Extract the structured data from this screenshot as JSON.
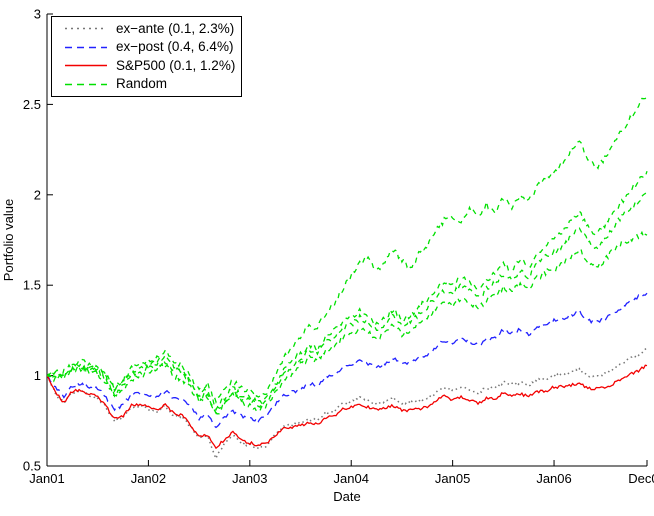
{
  "window": {
    "background": "#ffffff",
    "axis_color": "#000000"
  },
  "chart_data": {
    "type": "line",
    "title": "",
    "xlabel": "Date",
    "ylabel": "Portfolio value",
    "x_tick_labels": [
      "Jan01",
      "Jan02",
      "Jan03",
      "Jan04",
      "Jan05",
      "Jan06",
      "Dec06"
    ],
    "x_tick_positions_months": [
      0,
      12,
      24,
      36,
      48,
      60,
      71
    ],
    "x_range_months": [
      0,
      71
    ],
    "y_ticks": [
      0.5,
      1,
      1.5,
      2,
      2.5,
      3
    ],
    "ylim": [
      0.5,
      3
    ],
    "grid": false,
    "legend": {
      "position": "top-left",
      "border_color": "#000000",
      "background": "#ffffff"
    },
    "sampling": "monthly estimates, Jan 2001 - Dec 2006",
    "series": [
      {
        "name": "ex−ante (0.1, 2.3%)",
        "color": "#777777",
        "style": "dotted",
        "in_legend": true,
        "daily_noise": 0.008,
        "values": [
          1.0,
          0.9,
          0.845,
          0.905,
          0.915,
          0.89,
          0.88,
          0.822,
          0.752,
          0.768,
          0.826,
          0.83,
          0.818,
          0.8,
          0.83,
          0.778,
          0.772,
          0.712,
          0.655,
          0.66,
          0.545,
          0.63,
          0.668,
          0.628,
          0.615,
          0.6,
          0.612,
          0.67,
          0.715,
          0.73,
          0.745,
          0.76,
          0.752,
          0.795,
          0.802,
          0.845,
          0.86,
          0.875,
          0.862,
          0.845,
          0.86,
          0.878,
          0.85,
          0.852,
          0.862,
          0.875,
          0.905,
          0.935,
          0.915,
          0.935,
          0.922,
          0.905,
          0.932,
          0.932,
          0.962,
          0.952,
          0.962,
          0.945,
          0.975,
          0.978,
          1.0,
          1.005,
          1.018,
          1.032,
          1.002,
          0.998,
          1.008,
          1.035,
          1.062,
          1.095,
          1.118,
          1.148
        ]
      },
      {
        "name": "ex−post (0.4, 6.4%)",
        "color": "#2222ff",
        "style": "dashed",
        "in_legend": true,
        "daily_noise": 0.01,
        "values": [
          1.0,
          0.93,
          0.885,
          0.945,
          0.955,
          0.935,
          0.928,
          0.878,
          0.815,
          0.838,
          0.895,
          0.905,
          0.895,
          0.885,
          0.915,
          0.875,
          0.872,
          0.825,
          0.765,
          0.782,
          0.715,
          0.765,
          0.805,
          0.775,
          0.765,
          0.755,
          0.775,
          0.838,
          0.888,
          0.908,
          0.928,
          0.955,
          0.945,
          0.995,
          1.005,
          1.048,
          1.065,
          1.085,
          1.068,
          1.045,
          1.068,
          1.095,
          1.062,
          1.072,
          1.095,
          1.115,
          1.155,
          1.195,
          1.175,
          1.205,
          1.192,
          1.165,
          1.205,
          1.205,
          1.255,
          1.235,
          1.255,
          1.225,
          1.275,
          1.275,
          1.305,
          1.315,
          1.335,
          1.355,
          1.305,
          1.298,
          1.308,
          1.345,
          1.378,
          1.415,
          1.435,
          1.455
        ]
      },
      {
        "name": "S&P500  (0.1, 1.2%)",
        "color": "#f30000",
        "style": "solid",
        "in_legend": true,
        "daily_noise": 0.008,
        "values": [
          1.0,
          0.908,
          0.849,
          0.914,
          0.92,
          0.896,
          0.887,
          0.83,
          0.762,
          0.776,
          0.834,
          0.84,
          0.827,
          0.81,
          0.84,
          0.788,
          0.781,
          0.725,
          0.668,
          0.671,
          0.597,
          0.649,
          0.685,
          0.644,
          0.627,
          0.616,
          0.621,
          0.671,
          0.706,
          0.714,
          0.725,
          0.738,
          0.729,
          0.769,
          0.774,
          0.814,
          0.828,
          0.838,
          0.824,
          0.81,
          0.821,
          0.835,
          0.807,
          0.808,
          0.816,
          0.827,
          0.859,
          0.887,
          0.865,
          0.881,
          0.865,
          0.847,
          0.873,
          0.872,
          0.903,
          0.893,
          0.9,
          0.884,
          0.914,
          0.914,
          0.937,
          0.938,
          0.948,
          0.96,
          0.93,
          0.93,
          0.935,
          0.955,
          0.978,
          1.009,
          1.026,
          1.06
        ]
      },
      {
        "name": "Random",
        "color": "#00e000",
        "style": "dashed",
        "in_legend": true,
        "daily_noise": 0.016,
        "values": [
          1.0,
          1.02,
          0.99,
          1.05,
          1.08,
          1.06,
          1.04,
          1.0,
          0.93,
          0.97,
          1.04,
          1.06,
          1.08,
          1.1,
          1.14,
          1.08,
          1.06,
          1.0,
          0.92,
          0.95,
          0.85,
          0.92,
          0.97,
          0.93,
          0.92,
          0.88,
          0.91,
          1.0,
          1.1,
          1.15,
          1.22,
          1.28,
          1.26,
          1.35,
          1.4,
          1.48,
          1.55,
          1.62,
          1.66,
          1.58,
          1.63,
          1.7,
          1.64,
          1.6,
          1.67,
          1.72,
          1.8,
          1.86,
          1.88,
          1.85,
          1.92,
          1.88,
          1.95,
          1.9,
          1.98,
          1.93,
          2.0,
          1.96,
          2.05,
          2.1,
          2.12,
          2.18,
          2.25,
          2.3,
          2.2,
          2.15,
          2.2,
          2.28,
          2.35,
          2.42,
          2.5,
          2.55
        ]
      },
      {
        "name": "Random",
        "color": "#00e000",
        "style": "dashed",
        "in_legend": false,
        "daily_noise": 0.016,
        "values": [
          1.0,
          0.98,
          1.02,
          1.06,
          1.03,
          1.05,
          1.02,
          0.97,
          0.9,
          0.94,
          1.0,
          1.02,
          1.04,
          1.06,
          1.08,
          1.02,
          1.04,
          0.97,
          0.89,
          0.92,
          0.82,
          0.88,
          0.93,
          0.89,
          0.88,
          0.85,
          0.87,
          0.95,
          1.03,
          1.08,
          1.12,
          1.17,
          1.15,
          1.22,
          1.25,
          1.3,
          1.32,
          1.36,
          1.33,
          1.28,
          1.32,
          1.37,
          1.31,
          1.33,
          1.38,
          1.42,
          1.47,
          1.52,
          1.5,
          1.55,
          1.52,
          1.47,
          1.53,
          1.56,
          1.62,
          1.58,
          1.64,
          1.6,
          1.68,
          1.72,
          1.75,
          1.8,
          1.85,
          1.9,
          1.82,
          1.78,
          1.83,
          1.9,
          1.96,
          2.02,
          2.08,
          2.12
        ]
      },
      {
        "name": "Random",
        "color": "#00e000",
        "style": "dashed",
        "in_legend": false,
        "daily_noise": 0.016,
        "values": [
          1.0,
          1.03,
          1.0,
          1.04,
          1.06,
          1.02,
          1.05,
          1.0,
          0.92,
          0.96,
          1.02,
          1.04,
          1.05,
          1.08,
          1.1,
          1.05,
          1.02,
          0.96,
          0.88,
          0.9,
          0.8,
          0.86,
          0.91,
          0.87,
          0.86,
          0.83,
          0.85,
          0.93,
          1.0,
          1.05,
          1.1,
          1.14,
          1.12,
          1.18,
          1.21,
          1.26,
          1.28,
          1.32,
          1.29,
          1.25,
          1.29,
          1.34,
          1.28,
          1.3,
          1.34,
          1.38,
          1.43,
          1.47,
          1.45,
          1.5,
          1.47,
          1.43,
          1.48,
          1.51,
          1.56,
          1.53,
          1.58,
          1.55,
          1.62,
          1.66,
          1.68,
          1.72,
          1.76,
          1.82,
          1.74,
          1.7,
          1.76,
          1.82,
          1.88,
          1.92,
          1.97,
          2.01
        ]
      },
      {
        "name": "Random",
        "color": "#00e000",
        "style": "dashed",
        "in_legend": false,
        "daily_noise": 0.016,
        "values": [
          1.0,
          0.99,
          1.01,
          1.03,
          1.05,
          1.03,
          1.01,
          0.96,
          0.89,
          0.92,
          0.98,
          1.0,
          1.02,
          1.04,
          1.06,
          1.0,
          0.98,
          0.93,
          0.86,
          0.88,
          0.78,
          0.84,
          0.89,
          0.85,
          0.84,
          0.81,
          0.83,
          0.9,
          0.97,
          1.01,
          1.06,
          1.1,
          1.08,
          1.14,
          1.16,
          1.21,
          1.23,
          1.26,
          1.24,
          1.2,
          1.24,
          1.28,
          1.23,
          1.25,
          1.29,
          1.32,
          1.37,
          1.41,
          1.39,
          1.43,
          1.41,
          1.37,
          1.42,
          1.44,
          1.49,
          1.46,
          1.51,
          1.48,
          1.54,
          1.57,
          1.59,
          1.62,
          1.66,
          1.7,
          1.63,
          1.6,
          1.64,
          1.69,
          1.73,
          1.75,
          1.77,
          1.79
        ]
      }
    ]
  }
}
